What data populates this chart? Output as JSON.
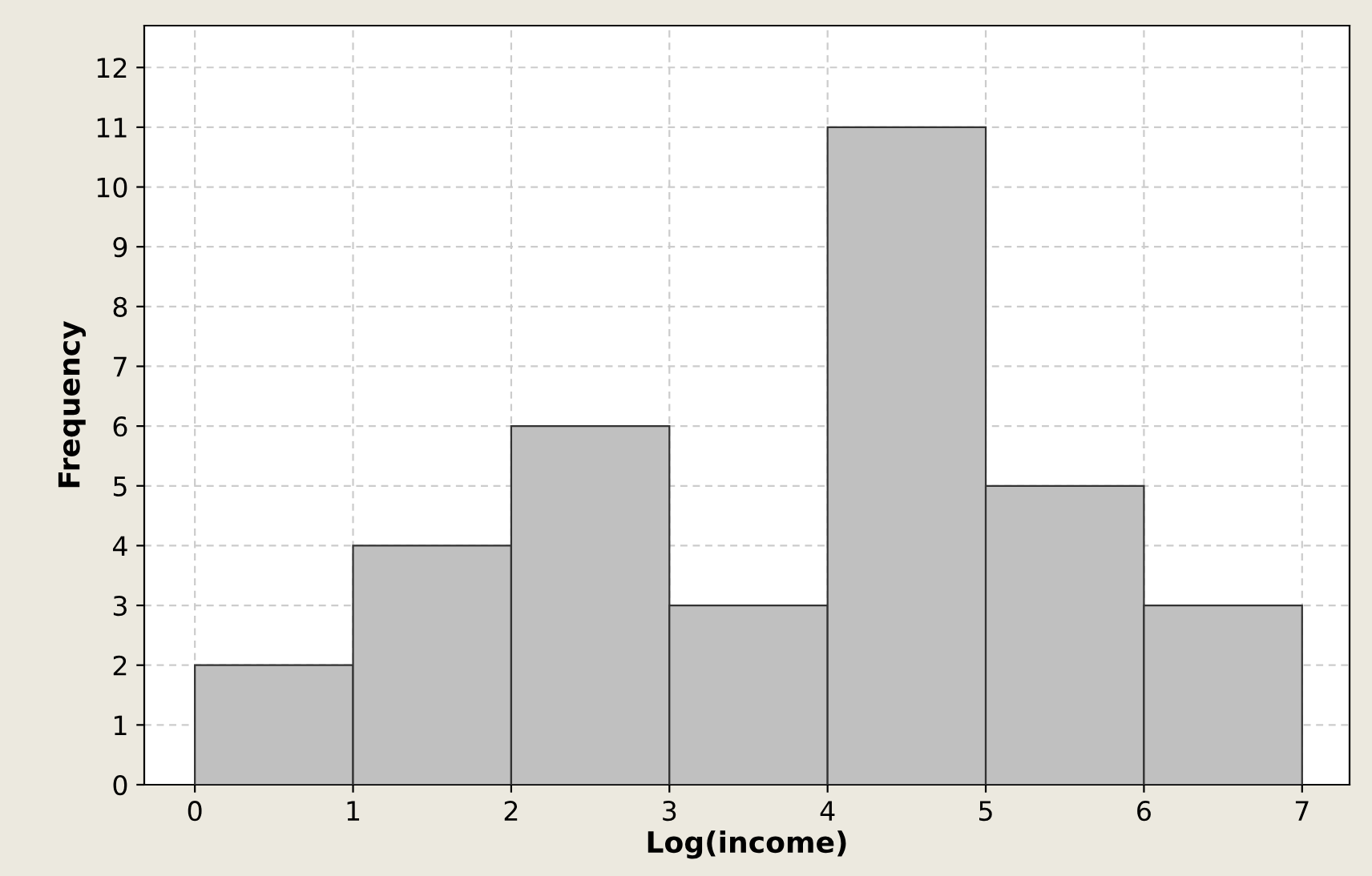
{
  "chart_data": {
    "type": "histogram",
    "xlabel": "Log(income)",
    "ylabel": "Frequency",
    "bins": [
      0,
      1,
      2,
      3,
      4,
      5,
      6,
      7
    ],
    "values": [
      2,
      4,
      6,
      3,
      11,
      5,
      3
    ],
    "color": "#c0c0c0",
    "xlim": [
      -0.32,
      7.3
    ],
    "ylim": [
      0,
      12.7
    ],
    "xticks": [
      0,
      1,
      2,
      3,
      4,
      5,
      6,
      7
    ],
    "yticks": [
      0,
      1,
      2,
      3,
      4,
      5,
      6,
      7,
      8,
      9,
      10,
      11,
      12
    ],
    "grid": true
  }
}
